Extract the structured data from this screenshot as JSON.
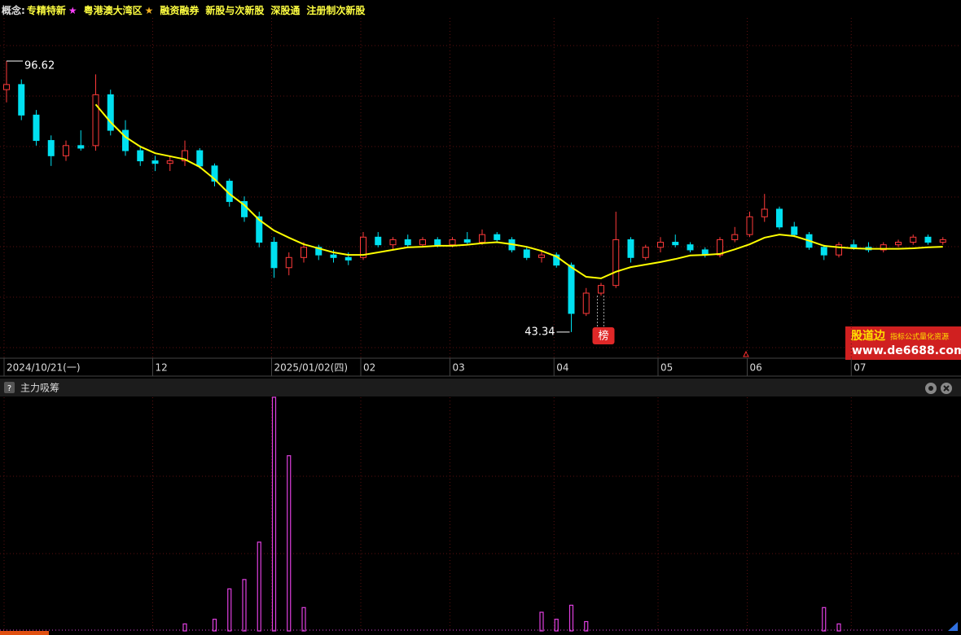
{
  "concepts": {
    "prefix": "概念:",
    "items": [
      {
        "text": "专精特新",
        "star": "★",
        "star_color": "#ff40ff"
      },
      {
        "text": "粤港澳大湾区",
        "star": "★",
        "star_color": "#f0b020"
      },
      {
        "text": "融资融券"
      },
      {
        "text": "新股与次新股"
      },
      {
        "text": "深股通"
      },
      {
        "text": "注册制次新股"
      }
    ]
  },
  "indicator_panel": {
    "help": "?",
    "title": "主力吸筹"
  },
  "badge": "榜",
  "watermark": {
    "brand": "股道边",
    "tagline": "指标公式量化资源",
    "url": "www.de6688.com"
  },
  "chart_data": [
    {
      "type": "candlestick",
      "up_color": "#ff3a3a",
      "down_color": "#00e0f0",
      "ylim": [
        38.2,
        105.1
      ],
      "categories": [
        "2024/10/21(一)",
        null,
        null,
        null,
        null,
        null,
        null,
        null,
        null,
        null,
        "12",
        null,
        null,
        null,
        null,
        null,
        null,
        null,
        "2025/01/02(四)",
        null,
        null,
        null,
        null,
        null,
        "02",
        null,
        null,
        null,
        null,
        null,
        "03",
        null,
        null,
        null,
        null,
        null,
        null,
        "04",
        null,
        null,
        null,
        null,
        null,
        null,
        "05",
        null,
        null,
        null,
        null,
        null,
        "06",
        null,
        null,
        null,
        null,
        null,
        null,
        "07",
        null,
        null,
        null,
        null,
        null,
        null
      ],
      "candles": [
        [
          91,
          96.62,
          88.5,
          92
        ],
        [
          92,
          93,
          85,
          86
        ],
        [
          86,
          87,
          80,
          81
        ],
        [
          81,
          82,
          76,
          78
        ],
        [
          78,
          81,
          77,
          80
        ],
        [
          80,
          83,
          79,
          79.5
        ],
        [
          80,
          94,
          79,
          90
        ],
        [
          90,
          91,
          82,
          83
        ],
        [
          83,
          85,
          78,
          79
        ],
        [
          79,
          80,
          76,
          77
        ],
        [
          77,
          78,
          75,
          76.5
        ],
        [
          76.5,
          78,
          75,
          77
        ],
        [
          77,
          81,
          76,
          79
        ],
        [
          79,
          79.5,
          75.5,
          76
        ],
        [
          76,
          76.5,
          72,
          73
        ],
        [
          73,
          73.5,
          68,
          69
        ],
        [
          69,
          70,
          65,
          66
        ],
        [
          66,
          67,
          60,
          61
        ],
        [
          61,
          62,
          54,
          56
        ],
        [
          56,
          59,
          54.5,
          58
        ],
        [
          58,
          61,
          57,
          60
        ],
        [
          60,
          60.5,
          57.5,
          58.5
        ],
        [
          58.5,
          59.5,
          57,
          58
        ],
        [
          58,
          59,
          56.5,
          57.5
        ],
        [
          58,
          63,
          57.5,
          62
        ],
        [
          62,
          63,
          60,
          60.5
        ],
        [
          60.5,
          62,
          59.5,
          61.5
        ],
        [
          61.5,
          62.5,
          60,
          60.5
        ],
        [
          60.5,
          62,
          60,
          61.5
        ],
        [
          61.5,
          62,
          60,
          60.5
        ],
        [
          60.5,
          62,
          60,
          61.5
        ],
        [
          61.5,
          63,
          60.5,
          61
        ],
        [
          61,
          63.5,
          60.5,
          62.5
        ],
        [
          62.5,
          63,
          61,
          61.5
        ],
        [
          61.5,
          62,
          59,
          59.5
        ],
        [
          59.5,
          60,
          57.5,
          58
        ],
        [
          58,
          59.5,
          57,
          58.5
        ],
        [
          58.5,
          59,
          56,
          56.5
        ],
        [
          56.5,
          57,
          43.34,
          47
        ],
        [
          47,
          52,
          46.5,
          51
        ],
        [
          51,
          53,
          50.5,
          52.5
        ],
        [
          52.5,
          67,
          52,
          61.5
        ],
        [
          61.5,
          62,
          57,
          58
        ],
        [
          58,
          60.5,
          57.5,
          60
        ],
        [
          60,
          62,
          59,
          61
        ],
        [
          61,
          62.5,
          60,
          60.5
        ],
        [
          60.5,
          61,
          59,
          59.5
        ],
        [
          59.5,
          60,
          58,
          58.5
        ],
        [
          58.5,
          62,
          58,
          61.5
        ],
        [
          61.5,
          64,
          61,
          62.5
        ],
        [
          62.5,
          67,
          62,
          66
        ],
        [
          66,
          70.5,
          65,
          67.5
        ],
        [
          67.5,
          68,
          63.5,
          64
        ],
        [
          64,
          65,
          62,
          62.5
        ],
        [
          62.5,
          63,
          59.5,
          60
        ],
        [
          60,
          60.5,
          57.5,
          58.5
        ],
        [
          58.5,
          61,
          58,
          60.5
        ],
        [
          60.5,
          61.5,
          59.5,
          60
        ],
        [
          60,
          61,
          59,
          59.5
        ],
        [
          59.5,
          61,
          59,
          60.5
        ],
        [
          60.5,
          61.5,
          60,
          61
        ],
        [
          61,
          62.5,
          60.5,
          62
        ],
        [
          62,
          62.5,
          60.5,
          61
        ],
        [
          61,
          62,
          60.5,
          61.5
        ]
      ],
      "ma": {
        "color": "#ffff00",
        "values": [
          null,
          null,
          null,
          null,
          null,
          null,
          88.1,
          84.6,
          81.7,
          79.8,
          78.5,
          77.9,
          77.3,
          75.8,
          73.4,
          70.5,
          68.3,
          65.4,
          63.3,
          61.9,
          60.6,
          59.8,
          59,
          58.5,
          58.5,
          59,
          59.5,
          60,
          60.1,
          60.3,
          60.3,
          60.5,
          60.8,
          61,
          60.6,
          60.1,
          59.3,
          58.2,
          56.1,
          54.2,
          53.9,
          55.2,
          56.1,
          56.6,
          57.1,
          57.7,
          58.4,
          58.5,
          58.7,
          59.6,
          60.6,
          61.9,
          62.5,
          62.2,
          61.3,
          60.3,
          60,
          59.8,
          59.7,
          59.7,
          59.7,
          59.8,
          60,
          60.1
        ]
      },
      "high_label": 96.62,
      "low_label": 43.34
    },
    {
      "type": "bar",
      "color": "#e040e0",
      "ylim": [
        0,
        100
      ],
      "values": [
        0,
        0,
        0,
        0,
        0,
        0,
        0,
        0,
        0,
        0,
        0,
        0,
        3,
        0,
        5,
        18,
        22,
        38,
        100,
        75,
        10,
        0,
        0,
        0,
        0,
        0,
        0,
        0,
        0,
        0,
        0,
        0,
        0,
        0,
        0,
        0,
        8,
        5,
        11,
        4,
        0,
        0,
        0,
        0,
        0,
        0,
        0,
        0,
        0,
        0,
        0,
        0,
        0,
        0,
        0,
        10,
        3,
        0,
        0,
        0,
        0,
        0,
        0,
        0
      ]
    }
  ]
}
